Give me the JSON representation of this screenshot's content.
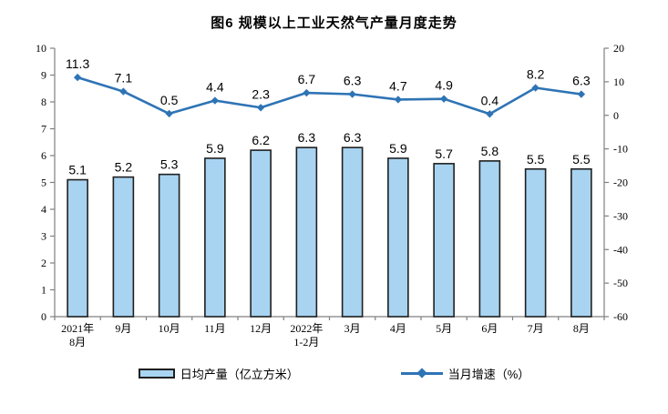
{
  "chart_data": {
    "type": "bar+line",
    "title": "图6 规模以上工业天然气产量月度走势",
    "categories": [
      [
        "2021年",
        "8月"
      ],
      [
        "9月"
      ],
      [
        "10月"
      ],
      [
        "11月"
      ],
      [
        "12月"
      ],
      [
        "2022年",
        "1-2月"
      ],
      [
        "3月"
      ],
      [
        "4月"
      ],
      [
        "5月"
      ],
      [
        "6月"
      ],
      [
        "7月"
      ],
      [
        "8月"
      ]
    ],
    "series": [
      {
        "name": "日均产量（亿立方米）",
        "type": "bar",
        "axis": "left",
        "values": [
          5.1,
          5.2,
          5.3,
          5.9,
          6.2,
          6.3,
          6.3,
          5.9,
          5.7,
          5.8,
          5.5,
          5.5
        ],
        "labels": [
          "5.1",
          "5.2",
          "5.3",
          "5.9",
          "6.2",
          "6.3",
          "6.3",
          "5.9",
          "5.7",
          "5.8",
          "5.5",
          "5.5"
        ]
      },
      {
        "name": "当月增速（%）",
        "type": "line",
        "axis": "right",
        "values": [
          11.3,
          7.1,
          0.5,
          4.4,
          2.3,
          6.7,
          6.3,
          4.7,
          4.9,
          0.4,
          8.2,
          6.3
        ],
        "labels": [
          "11.3",
          "7.1",
          "0.5",
          "4.4",
          "2.3",
          "6.7",
          "6.3",
          "4.7",
          "4.9",
          "0.4",
          "8.2",
          "6.3"
        ]
      }
    ],
    "left_axis": {
      "min": 0,
      "max": 10,
      "step": 1,
      "tick_labels": [
        "0",
        "1",
        "2",
        "3",
        "4",
        "5",
        "6",
        "7",
        "8",
        "9",
        "10"
      ]
    },
    "right_axis": {
      "min": -60,
      "max": 20,
      "step": 10,
      "tick_labels": [
        "-60",
        "-50",
        "-40",
        "-30",
        "-20",
        "-10",
        "0",
        "10",
        "20"
      ]
    },
    "legend": [
      {
        "label": "日均产量（亿立方米）",
        "swatch": "bar"
      },
      {
        "label": "当月增速（%）",
        "swatch": "line"
      }
    ],
    "colors": {
      "bar_fill": "#a8d4f2",
      "bar_border": "#1f1f1f",
      "line": "#2e74b5",
      "text": "#000000"
    },
    "grid": "off",
    "legend_position": "bottom"
  }
}
